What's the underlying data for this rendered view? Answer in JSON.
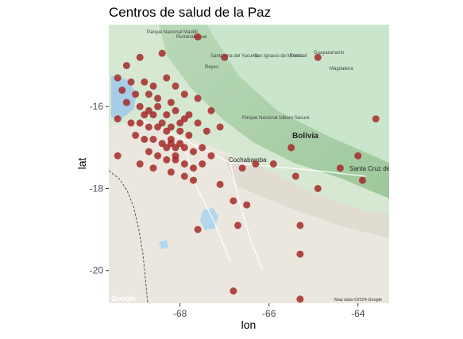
{
  "title": "Centros de salud de la Paz",
  "chart_data": {
    "type": "scatter",
    "title": "Centros de salud de la Paz",
    "xlabel": "lon",
    "ylabel": "lat",
    "xlim": [
      -69.6,
      -63.3
    ],
    "ylim": [
      -20.8,
      -14.0
    ],
    "x_ticks": [
      -68,
      -66,
      -64
    ],
    "y_ticks": [
      -16,
      -18,
      -20
    ],
    "x_tick_labels": [
      "-68",
      "-66",
      "-64"
    ],
    "y_tick_labels": [
      "-16",
      "-18",
      "-20"
    ],
    "point_color": "#a52a2a",
    "basemap": "Google terrain",
    "map_labels": {
      "country": "Bolivia",
      "cities": [
        "Cochabamba",
        "Santa Cruz de la Sierra"
      ],
      "places": [
        "Trinidad",
        "San Ignacio de Moxos",
        "Santa Ana del Yacuma",
        "Parque Nacional Madidi",
        "Parque Nacional Isiboro Secure",
        "Rurrenabaque",
        "Reyes",
        "Guayaramerín",
        "Magdalena"
      ],
      "attribution": "Map data ©2024 Google",
      "logo": "Google"
    },
    "points": [
      {
        "x": -68.9,
        "y": -14.8
      },
      {
        "x": -69.2,
        "y": -15.0
      },
      {
        "x": -68.4,
        "y": -14.7
      },
      {
        "x": -67.6,
        "y": -14.3
      },
      {
        "x": -67.0,
        "y": -14.8
      },
      {
        "x": -64.9,
        "y": -14.8
      },
      {
        "x": -69.4,
        "y": -15.3
      },
      {
        "x": -69.1,
        "y": -15.4
      },
      {
        "x": -68.8,
        "y": -15.4
      },
      {
        "x": -68.6,
        "y": -15.5
      },
      {
        "x": -68.3,
        "y": -15.3
      },
      {
        "x": -68.1,
        "y": -15.5
      },
      {
        "x": -69.3,
        "y": -15.6
      },
      {
        "x": -69.0,
        "y": -15.7
      },
      {
        "x": -68.7,
        "y": -15.7
      },
      {
        "x": -68.5,
        "y": -15.8
      },
      {
        "x": -68.2,
        "y": -15.9
      },
      {
        "x": -67.9,
        "y": -15.7
      },
      {
        "x": -67.6,
        "y": -15.8
      },
      {
        "x": -67.3,
        "y": -16.1
      },
      {
        "x": -69.2,
        "y": -15.9
      },
      {
        "x": -68.9,
        "y": -16.0
      },
      {
        "x": -68.7,
        "y": -16.1
      },
      {
        "x": -68.5,
        "y": -16.0
      },
      {
        "x": -68.3,
        "y": -16.2
      },
      {
        "x": -68.1,
        "y": -16.1
      },
      {
        "x": -67.9,
        "y": -16.3
      },
      {
        "x": -67.6,
        "y": -16.4
      },
      {
        "x": -67.4,
        "y": -16.6
      },
      {
        "x": -67.1,
        "y": -16.5
      },
      {
        "x": -69.4,
        "y": -16.3
      },
      {
        "x": -69.1,
        "y": -16.4
      },
      {
        "x": -68.9,
        "y": -16.4
      },
      {
        "x": -68.7,
        "y": -16.5
      },
      {
        "x": -68.5,
        "y": -16.5
      },
      {
        "x": -68.3,
        "y": -16.6
      },
      {
        "x": -68.2,
        "y": -16.5
      },
      {
        "x": -68.0,
        "y": -16.6
      },
      {
        "x": -67.8,
        "y": -16.7
      },
      {
        "x": -69.0,
        "y": -16.7
      },
      {
        "x": -68.8,
        "y": -16.8
      },
      {
        "x": -68.6,
        "y": -16.8
      },
      {
        "x": -68.4,
        "y": -16.9
      },
      {
        "x": -68.2,
        "y": -16.9
      },
      {
        "x": -68.1,
        "y": -17.0
      },
      {
        "x": -67.9,
        "y": -17.0
      },
      {
        "x": -67.7,
        "y": -17.1
      },
      {
        "x": -67.5,
        "y": -17.0
      },
      {
        "x": -67.3,
        "y": -17.2
      },
      {
        "x": -68.7,
        "y": -17.1
      },
      {
        "x": -68.5,
        "y": -17.2
      },
      {
        "x": -68.3,
        "y": -17.3
      },
      {
        "x": -68.1,
        "y": -17.3
      },
      {
        "x": -67.9,
        "y": -17.4
      },
      {
        "x": -67.7,
        "y": -17.5
      },
      {
        "x": -67.5,
        "y": -17.4
      },
      {
        "x": -69.4,
        "y": -17.2
      },
      {
        "x": -68.9,
        "y": -17.4
      },
      {
        "x": -68.6,
        "y": -17.5
      },
      {
        "x": -68.2,
        "y": -17.6
      },
      {
        "x": -67.9,
        "y": -17.7
      },
      {
        "x": -67.7,
        "y": -17.8
      },
      {
        "x": -67.1,
        "y": -17.9
      },
      {
        "x": -66.6,
        "y": -17.5
      },
      {
        "x": -66.3,
        "y": -17.4
      },
      {
        "x": -65.9,
        "y": -17.4
      },
      {
        "x": -65.5,
        "y": -17.0
      },
      {
        "x": -65.4,
        "y": -17.7
      },
      {
        "x": -64.9,
        "y": -18.0
      },
      {
        "x": -64.4,
        "y": -17.5
      },
      {
        "x": -64.0,
        "y": -17.2
      },
      {
        "x": -63.9,
        "y": -17.8
      },
      {
        "x": -63.6,
        "y": -16.3
      },
      {
        "x": -66.8,
        "y": -18.3
      },
      {
        "x": -66.5,
        "y": -18.4
      },
      {
        "x": -66.7,
        "y": -18.9
      },
      {
        "x": -65.3,
        "y": -18.9
      },
      {
        "x": -65.3,
        "y": -19.6
      },
      {
        "x": -67.6,
        "y": -19.0
      },
      {
        "x": -66.8,
        "y": -20.5
      },
      {
        "x": -65.3,
        "y": -20.7
      },
      {
        "x": -68.2,
        "y": -16.8
      },
      {
        "x": -68.0,
        "y": -16.9
      },
      {
        "x": -67.8,
        "y": -16.2
      },
      {
        "x": -68.4,
        "y": -16.4
      },
      {
        "x": -68.6,
        "y": -16.2
      },
      {
        "x": -68.8,
        "y": -16.2
      },
      {
        "x": -68.0,
        "y": -16.4
      },
      {
        "x": -68.3,
        "y": -17.0
      },
      {
        "x": -68.1,
        "y": -17.2
      }
    ]
  }
}
